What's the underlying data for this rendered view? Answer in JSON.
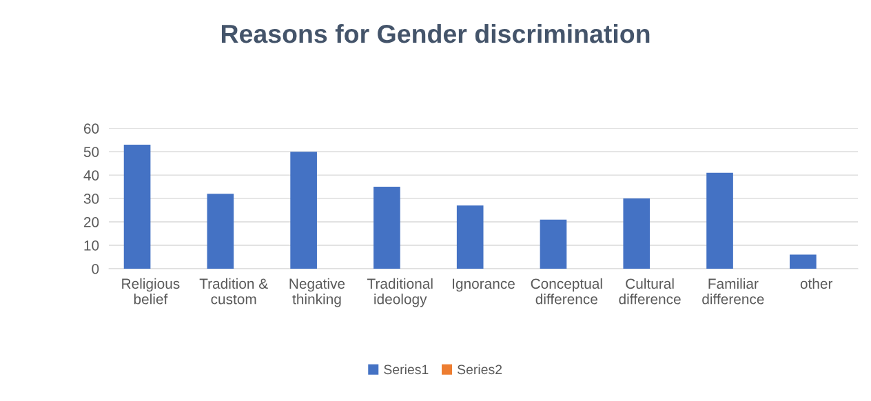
{
  "chart_data": {
    "type": "bar",
    "title": "Reasons for Gender discrimination",
    "categories": [
      "Religious\nbelief",
      "Tradition &\ncustom",
      "Negative\nthinking",
      "Traditional\nideology",
      "Ignorance",
      "Conceptual\ndifference",
      "Cultural\ndifference",
      "Familiar\ndifference",
      "other"
    ],
    "series": [
      {
        "name": "Series1",
        "color": "#4472c4",
        "values": [
          53,
          32,
          50,
          35,
          27,
          21,
          30,
          41,
          6
        ]
      },
      {
        "name": "Series2",
        "color": "#ed7d31",
        "values": [
          null,
          null,
          null,
          null,
          null,
          null,
          null,
          null,
          null
        ]
      }
    ],
    "ylim": [
      0,
      60
    ],
    "yticks": [
      0,
      10,
      20,
      30,
      40,
      50,
      60
    ],
    "grid": "y",
    "legend": "bottom"
  }
}
